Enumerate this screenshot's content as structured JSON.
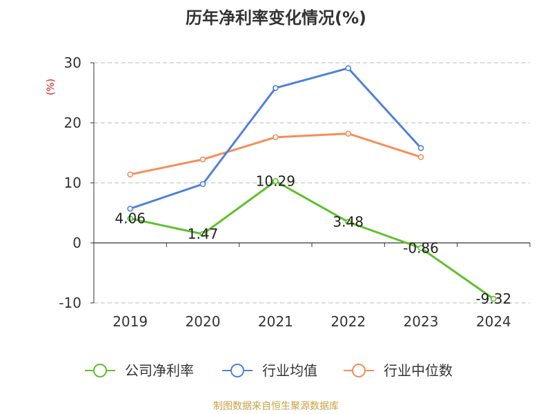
{
  "title": "历年净利率变化情况(%)",
  "source_text": "制图数据来自恒生聚源数据库",
  "chart_data": {
    "type": "line",
    "title": "历年净利率变化情况(%)",
    "ylabel": "(%)",
    "xlabel": "",
    "ylim": [
      -10,
      30
    ],
    "yticks": [
      -10,
      0,
      10,
      20,
      30
    ],
    "categories": [
      "2019",
      "2020",
      "2021",
      "2022",
      "2023",
      "2024"
    ],
    "grid": true,
    "legend_position": "bottom",
    "series": [
      {
        "name": "公司净利率",
        "color": "#5cc12a",
        "values": [
          4.06,
          1.47,
          10.29,
          3.48,
          -0.86,
          -9.32
        ],
        "labels": [
          "4.06",
          "1.47",
          "10.29",
          "3.48",
          "-0.86",
          "-9.32"
        ]
      },
      {
        "name": "行业均值",
        "color": "#4f7fdc",
        "values": [
          5.7,
          9.8,
          25.8,
          29.1,
          15.8,
          null
        ]
      },
      {
        "name": "行业中位数",
        "color": "#f78c57",
        "values": [
          11.4,
          13.9,
          17.6,
          18.2,
          14.3,
          null
        ]
      }
    ]
  }
}
